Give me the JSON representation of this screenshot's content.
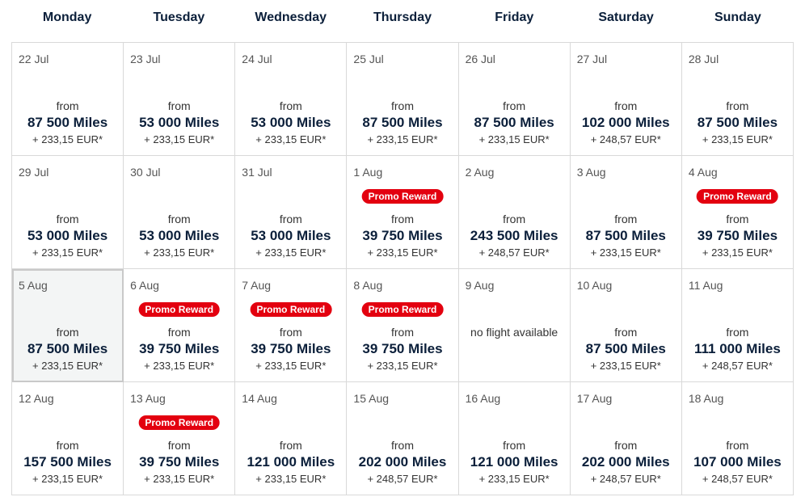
{
  "days": [
    "Monday",
    "Tuesday",
    "Wednesday",
    "Thursday",
    "Friday",
    "Saturday",
    "Sunday"
  ],
  "labels": {
    "from": "from",
    "promo": "Promo Reward",
    "no_flight": "no flight available"
  },
  "selected_date": "5 Aug",
  "colors": {
    "promo_red": "#e3000f",
    "navy": "#0b1f3a"
  },
  "weeks": [
    [
      {
        "date": "22 Jul",
        "miles": "87 500 Miles",
        "price": "+ 233,15 EUR*"
      },
      {
        "date": "23 Jul",
        "miles": "53 000 Miles",
        "price": "+ 233,15 EUR*"
      },
      {
        "date": "24 Jul",
        "miles": "53 000 Miles",
        "price": "+ 233,15 EUR*"
      },
      {
        "date": "25 Jul",
        "miles": "87 500 Miles",
        "price": "+ 233,15 EUR*"
      },
      {
        "date": "26 Jul",
        "miles": "87 500 Miles",
        "price": "+ 233,15 EUR*"
      },
      {
        "date": "27 Jul",
        "miles": "102 000 Miles",
        "price": "+ 248,57 EUR*"
      },
      {
        "date": "28 Jul",
        "miles": "87 500 Miles",
        "price": "+ 233,15 EUR*"
      }
    ],
    [
      {
        "date": "29 Jul",
        "miles": "53 000 Miles",
        "price": "+ 233,15 EUR*"
      },
      {
        "date": "30 Jul",
        "miles": "53 000 Miles",
        "price": "+ 233,15 EUR*"
      },
      {
        "date": "31 Jul",
        "miles": "53 000 Miles",
        "price": "+ 233,15 EUR*"
      },
      {
        "date": "1 Aug",
        "miles": "39 750 Miles",
        "price": "+ 233,15 EUR*",
        "promo": true
      },
      {
        "date": "2 Aug",
        "miles": "243 500 Miles",
        "price": "+ 248,57 EUR*"
      },
      {
        "date": "3 Aug",
        "miles": "87 500 Miles",
        "price": "+ 233,15 EUR*"
      },
      {
        "date": "4 Aug",
        "miles": "39 750 Miles",
        "price": "+ 233,15 EUR*",
        "promo": true
      }
    ],
    [
      {
        "date": "5 Aug",
        "miles": "87 500 Miles",
        "price": "+ 233,15 EUR*",
        "selected": true
      },
      {
        "date": "6 Aug",
        "miles": "39 750 Miles",
        "price": "+ 233,15 EUR*",
        "promo": true
      },
      {
        "date": "7 Aug",
        "miles": "39 750 Miles",
        "price": "+ 233,15 EUR*",
        "promo": true
      },
      {
        "date": "8 Aug",
        "miles": "39 750 Miles",
        "price": "+ 233,15 EUR*",
        "promo": true
      },
      {
        "date": "9 Aug",
        "no_flight": true
      },
      {
        "date": "10 Aug",
        "miles": "87 500 Miles",
        "price": "+ 233,15 EUR*"
      },
      {
        "date": "11 Aug",
        "miles": "111 000 Miles",
        "price": "+ 248,57 EUR*"
      }
    ],
    [
      {
        "date": "12 Aug",
        "miles": "157 500 Miles",
        "price": "+ 233,15 EUR*"
      },
      {
        "date": "13 Aug",
        "miles": "39 750 Miles",
        "price": "+ 233,15 EUR*",
        "promo": true
      },
      {
        "date": "14 Aug",
        "miles": "121 000 Miles",
        "price": "+ 233,15 EUR*"
      },
      {
        "date": "15 Aug",
        "miles": "202 000 Miles",
        "price": "+ 248,57 EUR*"
      },
      {
        "date": "16 Aug",
        "miles": "121 000 Miles",
        "price": "+ 233,15 EUR*"
      },
      {
        "date": "17 Aug",
        "miles": "202 000 Miles",
        "price": "+ 248,57 EUR*"
      },
      {
        "date": "18 Aug",
        "miles": "107 000 Miles",
        "price": "+ 248,57 EUR*"
      }
    ]
  ]
}
